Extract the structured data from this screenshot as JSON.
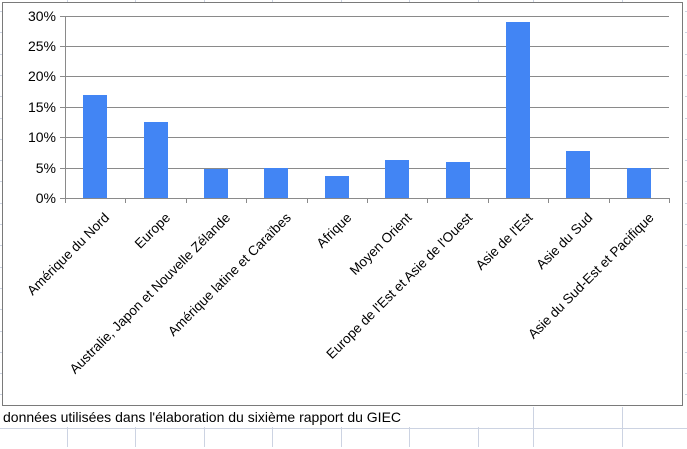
{
  "caption": {
    "text": "données utilisées dans l'élaboration du sixième rapport du GIEC"
  },
  "chart_data": {
    "type": "bar",
    "title": "",
    "xlabel": "",
    "ylabel": "",
    "categories": [
      "Amérique du Nord",
      "Europe",
      "Australie, Japon et Nouvelle Zélande",
      "Amérique latine et Caraïbes",
      "Afrique",
      "Moyen Orient",
      "Europe de l'Est et Asie de l'Ouest",
      "Asie de l'Est",
      "Asie du Sud",
      "Asie du Sud-Est et Pacifique"
    ],
    "values": [
      16.9,
      12.5,
      4.7,
      5,
      3.7,
      6.2,
      6,
      29,
      7.8,
      5
    ],
    "unit": "%",
    "ylim": [
      0,
      30
    ],
    "y_tick_values": [
      0,
      5,
      10,
      15,
      20,
      25,
      30
    ],
    "y_tick_labels": [
      "0%",
      "5%",
      "10%",
      "15%",
      "20%",
      "25%",
      "30%"
    ],
    "grid": true,
    "legend": "none",
    "x_label_rotation_deg": -45
  },
  "colors": {
    "bar": "#4285f4",
    "chart_gridline": "#8a8a8a",
    "chart_border": "#7a7a7a",
    "sheet_gridline": "#ccd3e2"
  }
}
